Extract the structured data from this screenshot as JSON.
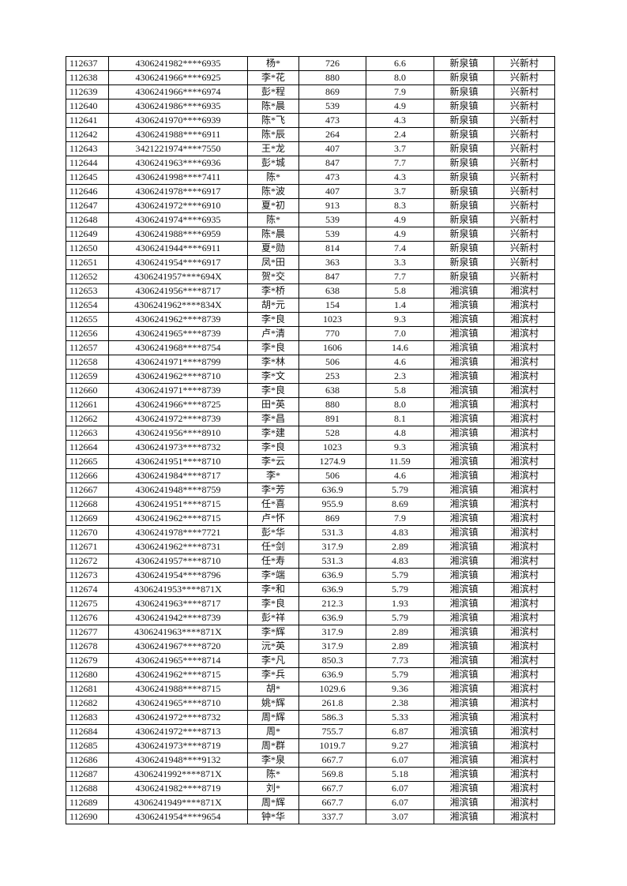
{
  "rows": [
    [
      "112637",
      "4306241982****6935",
      "杨*",
      "726",
      "6.6",
      "新泉镇",
      "兴新村"
    ],
    [
      "112638",
      "4306241966****6925",
      "李*花",
      "880",
      "8.0",
      "新泉镇",
      "兴新村"
    ],
    [
      "112639",
      "4306241966****6974",
      "彭*程",
      "869",
      "7.9",
      "新泉镇",
      "兴新村"
    ],
    [
      "112640",
      "4306241986****6935",
      "陈*晨",
      "539",
      "4.9",
      "新泉镇",
      "兴新村"
    ],
    [
      "112641",
      "4306241970****6939",
      "陈*飞",
      "473",
      "4.3",
      "新泉镇",
      "兴新村"
    ],
    [
      "112642",
      "4306241988****6911",
      "陈*辰",
      "264",
      "2.4",
      "新泉镇",
      "兴新村"
    ],
    [
      "112643",
      "3421221974****7550",
      "王*龙",
      "407",
      "3.7",
      "新泉镇",
      "兴新村"
    ],
    [
      "112644",
      "4306241963****6936",
      "彭*城",
      "847",
      "7.7",
      "新泉镇",
      "兴新村"
    ],
    [
      "112645",
      "4306241998****7411",
      "陈*",
      "473",
      "4.3",
      "新泉镇",
      "兴新村"
    ],
    [
      "112646",
      "4306241978****6917",
      "陈*波",
      "407",
      "3.7",
      "新泉镇",
      "兴新村"
    ],
    [
      "112647",
      "4306241972****6910",
      "夏*初",
      "913",
      "8.3",
      "新泉镇",
      "兴新村"
    ],
    [
      "112648",
      "4306241974****6935",
      "陈*",
      "539",
      "4.9",
      "新泉镇",
      "兴新村"
    ],
    [
      "112649",
      "4306241988****6959",
      "陈*晨",
      "539",
      "4.9",
      "新泉镇",
      "兴新村"
    ],
    [
      "112650",
      "4306241944****6911",
      "夏*勋",
      "814",
      "7.4",
      "新泉镇",
      "兴新村"
    ],
    [
      "112651",
      "4306241954****6917",
      "凤*田",
      "363",
      "3.3",
      "新泉镇",
      "兴新村"
    ],
    [
      "112652",
      "4306241957****694X",
      "贺*交",
      "847",
      "7.7",
      "新泉镇",
      "兴新村"
    ],
    [
      "112653",
      "4306241956****8717",
      "李*桥",
      "638",
      "5.8",
      "湘滨镇",
      "湘滨村"
    ],
    [
      "112654",
      "4306241962****834X",
      "胡*元",
      "154",
      "1.4",
      "湘滨镇",
      "湘滨村"
    ],
    [
      "112655",
      "4306241962****8739",
      "李*良",
      "1023",
      "9.3",
      "湘滨镇",
      "湘滨村"
    ],
    [
      "112656",
      "4306241965****8739",
      "卢*清",
      "770",
      "7.0",
      "湘滨镇",
      "湘滨村"
    ],
    [
      "112657",
      "4306241968****8754",
      "李*良",
      "1606",
      "14.6",
      "湘滨镇",
      "湘滨村"
    ],
    [
      "112658",
      "4306241971****8799",
      "李*林",
      "506",
      "4.6",
      "湘滨镇",
      "湘滨村"
    ],
    [
      "112659",
      "4306241962****8710",
      "李*文",
      "253",
      "2.3",
      "湘滨镇",
      "湘滨村"
    ],
    [
      "112660",
      "4306241971****8739",
      "李*良",
      "638",
      "5.8",
      "湘滨镇",
      "湘滨村"
    ],
    [
      "112661",
      "4306241966****8725",
      "田*英",
      "880",
      "8.0",
      "湘滨镇",
      "湘滨村"
    ],
    [
      "112662",
      "4306241972****8739",
      "李*昌",
      "891",
      "8.1",
      "湘滨镇",
      "湘滨村"
    ],
    [
      "112663",
      "4306241956****8910",
      "李*建",
      "528",
      "4.8",
      "湘滨镇",
      "湘滨村"
    ],
    [
      "112664",
      "4306241973****8732",
      "李*良",
      "1023",
      "9.3",
      "湘滨镇",
      "湘滨村"
    ],
    [
      "112665",
      "4306241951****8710",
      "李*云",
      "1274.9",
      "11.59",
      "湘滨镇",
      "湘滨村"
    ],
    [
      "112666",
      "4306241984****8717",
      "李*",
      "506",
      "4.6",
      "湘滨镇",
      "湘滨村"
    ],
    [
      "112667",
      "4306241948****8759",
      "李*芳",
      "636.9",
      "5.79",
      "湘滨镇",
      "湘滨村"
    ],
    [
      "112668",
      "4306241951****8715",
      "任*喜",
      "955.9",
      "8.69",
      "湘滨镇",
      "湘滨村"
    ],
    [
      "112669",
      "4306241962****8715",
      "卢*怀",
      "869",
      "7.9",
      "湘滨镇",
      "湘滨村"
    ],
    [
      "112670",
      "4306241978****7721",
      "彭*华",
      "531.3",
      "4.83",
      "湘滨镇",
      "湘滨村"
    ],
    [
      "112671",
      "4306241962****8731",
      "任*剑",
      "317.9",
      "2.89",
      "湘滨镇",
      "湘滨村"
    ],
    [
      "112672",
      "4306241957****8710",
      "任*寿",
      "531.3",
      "4.83",
      "湘滨镇",
      "湘滨村"
    ],
    [
      "112673",
      "4306241954****8796",
      "李*端",
      "636.9",
      "5.79",
      "湘滨镇",
      "湘滨村"
    ],
    [
      "112674",
      "4306241953****871X",
      "李*和",
      "636.9",
      "5.79",
      "湘滨镇",
      "湘滨村"
    ],
    [
      "112675",
      "4306241963****8717",
      "李*良",
      "212.3",
      "1.93",
      "湘滨镇",
      "湘滨村"
    ],
    [
      "112676",
      "4306241942****8739",
      "彭*祥",
      "636.9",
      "5.79",
      "湘滨镇",
      "湘滨村"
    ],
    [
      "112677",
      "4306241963****871X",
      "李*辉",
      "317.9",
      "2.89",
      "湘滨镇",
      "湘滨村"
    ],
    [
      "112678",
      "4306241967****8720",
      "沅*英",
      "317.9",
      "2.89",
      "湘滨镇",
      "湘滨村"
    ],
    [
      "112679",
      "4306241965****8714",
      "李*凡",
      "850.3",
      "7.73",
      "湘滨镇",
      "湘滨村"
    ],
    [
      "112680",
      "4306241962****8715",
      "李*兵",
      "636.9",
      "5.79",
      "湘滨镇",
      "湘滨村"
    ],
    [
      "112681",
      "4306241988****8715",
      "胡*",
      "1029.6",
      "9.36",
      "湘滨镇",
      "湘滨村"
    ],
    [
      "112682",
      "4306241965****8710",
      "姚*辉",
      "261.8",
      "2.38",
      "湘滨镇",
      "湘滨村"
    ],
    [
      "112683",
      "4306241972****8732",
      "周*辉",
      "586.3",
      "5.33",
      "湘滨镇",
      "湘滨村"
    ],
    [
      "112684",
      "4306241972****8713",
      "周*",
      "755.7",
      "6.87",
      "湘滨镇",
      "湘滨村"
    ],
    [
      "112685",
      "4306241973****8719",
      "周*群",
      "1019.7",
      "9.27",
      "湘滨镇",
      "湘滨村"
    ],
    [
      "112686",
      "4306241948****9132",
      "李*泉",
      "667.7",
      "6.07",
      "湘滨镇",
      "湘滨村"
    ],
    [
      "112687",
      "4306241992****871X",
      "陈*",
      "569.8",
      "5.18",
      "湘滨镇",
      "湘滨村"
    ],
    [
      "112688",
      "4306241982****8719",
      "刘*",
      "667.7",
      "6.07",
      "湘滨镇",
      "湘滨村"
    ],
    [
      "112689",
      "4306241949****871X",
      "周*辉",
      "667.7",
      "6.07",
      "湘滨镇",
      "湘滨村"
    ],
    [
      "112690",
      "4306241954****9654",
      "钟*华",
      "337.7",
      "3.07",
      "湘滨镇",
      "湘滨村"
    ]
  ]
}
